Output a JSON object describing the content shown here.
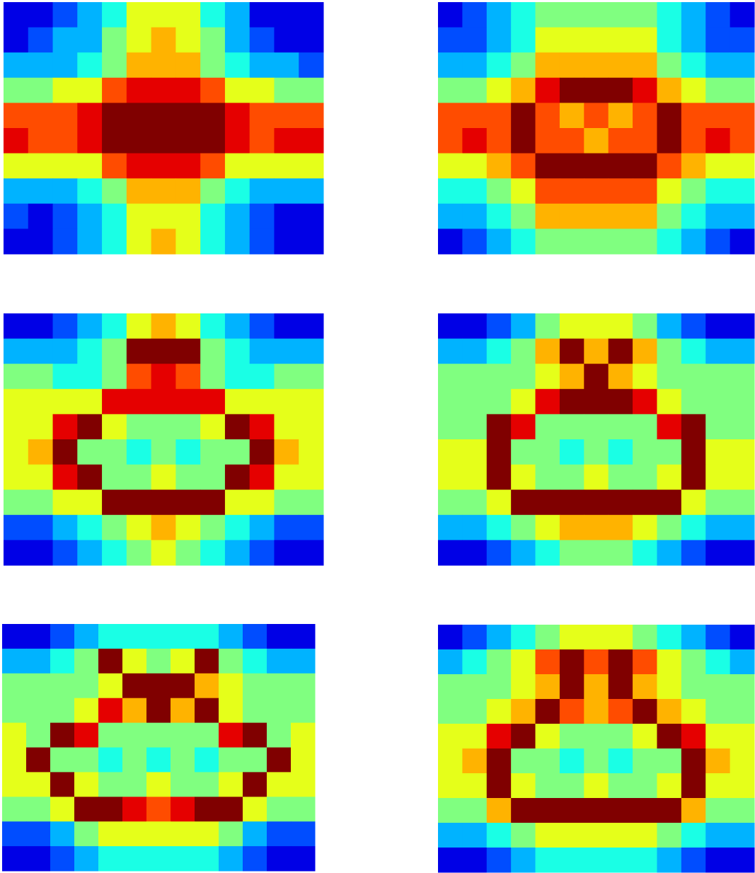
{
  "chart_data": [
    {
      "type": "heatmap",
      "colormap": "jet",
      "zlim": [
        0,
        10
      ],
      "z": [
        [
          1,
          1,
          2,
          3,
          4,
          6,
          6,
          6,
          4,
          3,
          1,
          1,
          1
        ],
        [
          1,
          2,
          3,
          3,
          5,
          6,
          7,
          6,
          5,
          3,
          2,
          1,
          1
        ],
        [
          3,
          3,
          3,
          4,
          5,
          7,
          7,
          7,
          5,
          4,
          3,
          3,
          2
        ],
        [
          5,
          5,
          6,
          6,
          8,
          9,
          9,
          9,
          8,
          6,
          6,
          5,
          5
        ],
        [
          8,
          8,
          8,
          9,
          10,
          10,
          10,
          10,
          10,
          9,
          8,
          8,
          8
        ],
        [
          9,
          8,
          8,
          9,
          10,
          10,
          10,
          10,
          10,
          9,
          8,
          9,
          9
        ],
        [
          6,
          6,
          6,
          6,
          8,
          9,
          9,
          9,
          8,
          6,
          6,
          6,
          6
        ],
        [
          3,
          3,
          3,
          4,
          5,
          7,
          7,
          7,
          5,
          4,
          3,
          3,
          3
        ],
        [
          2,
          1,
          2,
          3,
          4,
          6,
          6,
          6,
          4,
          3,
          2,
          1,
          1
        ],
        [
          1,
          1,
          2,
          3,
          4,
          6,
          7,
          6,
          4,
          3,
          2,
          1,
          1
        ]
      ]
    },
    {
      "type": "heatmap",
      "colormap": "jet",
      "zlim": [
        0,
        10
      ],
      "z": [
        [
          1,
          2,
          3,
          4,
          5,
          5,
          5,
          5,
          5,
          4,
          3,
          2,
          1
        ],
        [
          2,
          2,
          3,
          4,
          6,
          6,
          6,
          6,
          6,
          4,
          3,
          2,
          2
        ],
        [
          3,
          3,
          4,
          5,
          7,
          7,
          7,
          7,
          7,
          5,
          4,
          3,
          3
        ],
        [
          5,
          5,
          6,
          7,
          9,
          10,
          10,
          10,
          9,
          7,
          6,
          5,
          5
        ],
        [
          8,
          8,
          8,
          10,
          8,
          7,
          8,
          7,
          8,
          10,
          8,
          8,
          8
        ],
        [
          8,
          9,
          8,
          10,
          8,
          8,
          7,
          8,
          8,
          10,
          8,
          9,
          8
        ],
        [
          6,
          6,
          7,
          8,
          10,
          10,
          10,
          10,
          10,
          8,
          7,
          6,
          6
        ],
        [
          4,
          4,
          5,
          6,
          8,
          8,
          8,
          8,
          8,
          6,
          5,
          4,
          4
        ],
        [
          3,
          3,
          4,
          5,
          7,
          7,
          7,
          7,
          7,
          5,
          4,
          3,
          3
        ],
        [
          1,
          2,
          3,
          4,
          5,
          5,
          5,
          5,
          5,
          4,
          3,
          2,
          1
        ]
      ]
    },
    {
      "type": "heatmap",
      "colormap": "jet",
      "zlim": [
        0,
        10
      ],
      "z": [
        [
          1,
          1,
          2,
          3,
          4,
          6,
          7,
          6,
          4,
          3,
          2,
          1,
          1
        ],
        [
          3,
          3,
          3,
          4,
          5,
          10,
          10,
          10,
          5,
          4,
          3,
          3,
          3
        ],
        [
          5,
          5,
          4,
          4,
          5,
          8,
          9,
          8,
          5,
          4,
          4,
          5,
          5
        ],
        [
          6,
          6,
          6,
          6,
          9,
          9,
          9,
          9,
          9,
          6,
          6,
          6,
          6
        ],
        [
          6,
          6,
          9,
          10,
          6,
          5,
          5,
          5,
          6,
          10,
          9,
          6,
          6
        ],
        [
          6,
          7,
          10,
          5,
          5,
          4,
          5,
          4,
          5,
          5,
          10,
          7,
          6
        ],
        [
          6,
          6,
          9,
          10,
          5,
          5,
          6,
          5,
          5,
          10,
          9,
          6,
          6
        ],
        [
          5,
          5,
          6,
          6,
          10,
          10,
          10,
          10,
          10,
          6,
          6,
          5,
          5
        ],
        [
          2,
          2,
          3,
          4,
          5,
          6,
          7,
          6,
          5,
          4,
          3,
          2,
          2
        ],
        [
          1,
          1,
          2,
          3,
          4,
          5,
          6,
          5,
          4,
          3,
          2,
          1,
          1
        ]
      ]
    },
    {
      "type": "heatmap",
      "colormap": "jet",
      "zlim": [
        0,
        10
      ],
      "z": [
        [
          1,
          1,
          2,
          3,
          5,
          6,
          6,
          6,
          5,
          3,
          2,
          1,
          1
        ],
        [
          3,
          3,
          4,
          5,
          7,
          10,
          7,
          10,
          7,
          5,
          4,
          3,
          3
        ],
        [
          5,
          5,
          5,
          5,
          6,
          7,
          10,
          7,
          6,
          5,
          5,
          5,
          5
        ],
        [
          5,
          5,
          5,
          6,
          9,
          10,
          10,
          10,
          9,
          6,
          5,
          5,
          5
        ],
        [
          5,
          5,
          10,
          9,
          5,
          5,
          5,
          5,
          5,
          9,
          10,
          5,
          5
        ],
        [
          6,
          6,
          10,
          5,
          5,
          4,
          5,
          4,
          5,
          5,
          10,
          6,
          6
        ],
        [
          6,
          6,
          10,
          6,
          5,
          5,
          6,
          5,
          5,
          6,
          10,
          6,
          6
        ],
        [
          5,
          5,
          6,
          10,
          10,
          10,
          10,
          10,
          10,
          10,
          6,
          5,
          5
        ],
        [
          3,
          3,
          4,
          5,
          6,
          7,
          7,
          7,
          6,
          5,
          4,
          3,
          3
        ],
        [
          1,
          1,
          2,
          3,
          4,
          5,
          5,
          5,
          4,
          3,
          2,
          1,
          1
        ]
      ]
    },
    {
      "type": "heatmap",
      "colormap": "jet",
      "zlim": [
        0,
        10
      ],
      "z": [
        [
          1,
          1,
          2,
          3,
          4,
          4,
          4,
          4,
          4,
          3,
          2,
          1,
          1
        ],
        [
          3,
          3,
          4,
          5,
          10,
          6,
          5,
          6,
          10,
          5,
          4,
          3,
          3
        ],
        [
          5,
          5,
          5,
          5,
          6,
          10,
          10,
          10,
          7,
          6,
          5,
          5,
          5
        ],
        [
          5,
          5,
          5,
          6,
          9,
          7,
          10,
          7,
          10,
          6,
          5,
          5,
          5
        ],
        [
          6,
          5,
          10,
          9,
          5,
          5,
          5,
          5,
          5,
          9,
          10,
          5,
          6
        ],
        [
          6,
          10,
          5,
          5,
          4,
          5,
          4,
          5,
          4,
          5,
          5,
          10,
          6
        ],
        [
          6,
          6,
          10,
          6,
          5,
          5,
          6,
          5,
          5,
          6,
          10,
          6,
          6
        ],
        [
          5,
          5,
          6,
          10,
          10,
          9,
          8,
          9,
          10,
          10,
          6,
          5,
          5
        ],
        [
          2,
          2,
          3,
          5,
          6,
          6,
          6,
          6,
          6,
          5,
          3,
          2,
          2
        ],
        [
          1,
          1,
          2,
          3,
          4,
          4,
          4,
          4,
          4,
          3,
          2,
          1,
          1
        ]
      ]
    },
    {
      "type": "heatmap",
      "colormap": "jet",
      "zlim": [
        0,
        10
      ],
      "z": [
        [
          1,
          2,
          3,
          4,
          5,
          6,
          6,
          6,
          5,
          4,
          3,
          2,
          1
        ],
        [
          3,
          4,
          5,
          6,
          8,
          10,
          8,
          10,
          8,
          6,
          5,
          4,
          3
        ],
        [
          5,
          5,
          5,
          6,
          7,
          10,
          7,
          10,
          7,
          6,
          5,
          5,
          5
        ],
        [
          5,
          5,
          6,
          7,
          10,
          8,
          7,
          8,
          10,
          7,
          6,
          5,
          5
        ],
        [
          6,
          6,
          9,
          10,
          6,
          5,
          5,
          5,
          6,
          10,
          9,
          6,
          6
        ],
        [
          6,
          7,
          10,
          5,
          5,
          4,
          5,
          4,
          5,
          5,
          10,
          7,
          6
        ],
        [
          6,
          6,
          10,
          6,
          5,
          5,
          6,
          5,
          5,
          6,
          10,
          6,
          6
        ],
        [
          5,
          5,
          7,
          10,
          10,
          10,
          10,
          10,
          10,
          10,
          7,
          5,
          5
        ],
        [
          3,
          3,
          4,
          5,
          6,
          6,
          6,
          6,
          6,
          5,
          4,
          3,
          3
        ],
        [
          1,
          1,
          2,
          3,
          4,
          4,
          4,
          4,
          4,
          3,
          2,
          1,
          1
        ]
      ]
    }
  ]
}
